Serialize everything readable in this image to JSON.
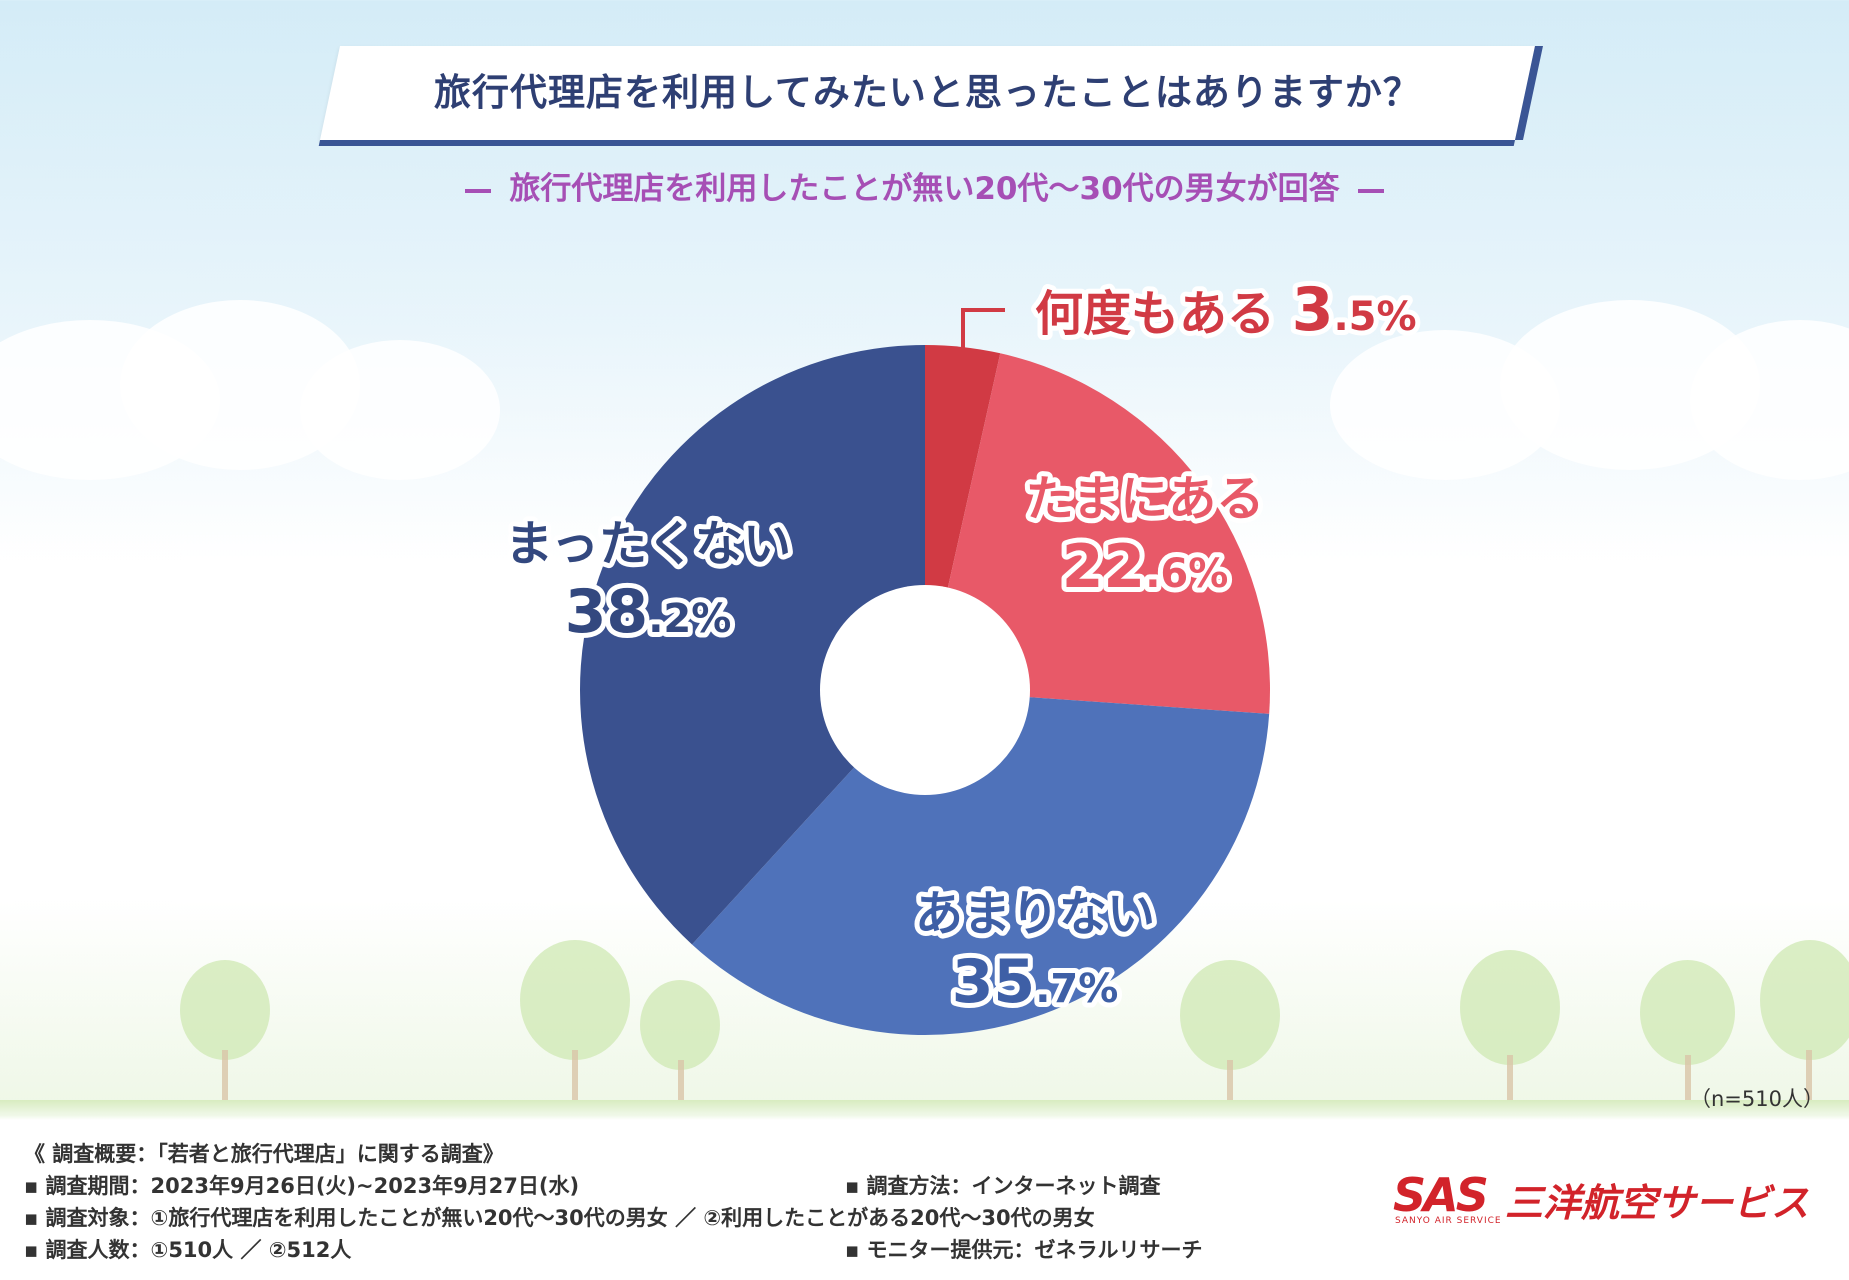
{
  "title": "旅行代理店を利用してみたいと思ったことはありますか？",
  "subtitle": "旅行代理店を利用したことが無い20代〜30代の男女が回答",
  "sample_note": "（n=510人）",
  "chart_data": {
    "type": "donut",
    "title": "旅行代理店を利用してみたいと思ったことはありますか？",
    "subtitle": "旅行代理店を利用したことが無い20代〜30代の男女が回答",
    "legend": "none",
    "slices": [
      {
        "label": "何度もある",
        "value": 3.5,
        "pct_int": "3",
        "pct_dec": ".5%",
        "color": "#d13a44",
        "text_color": "#d13a44"
      },
      {
        "label": "たまにある",
        "value": 22.6,
        "pct_int": "22",
        "pct_dec": ".6%",
        "color": "#e85968",
        "text_color": "#e85968"
      },
      {
        "label": "あまりない",
        "value": 35.7,
        "pct_int": "35",
        "pct_dec": ".7%",
        "color": "#4f72ba",
        "text_color": "#3e5fa6"
      },
      {
        "label": "まったくない",
        "value": 38.2,
        "pct_int": "38",
        "pct_dec": ".2%",
        "color": "#3a518f",
        "text_color": "#33487f"
      }
    ]
  },
  "footer": {
    "overview": "《 調査概要：「若者と旅行代理店」に関する調査》",
    "period": "▪ 調査期間：2023年9月26日(火)~2023年9月27日(水)",
    "method": "▪ 調査方法：インターネット調査",
    "target": "▪ 調査対象：①旅行代理店を利用したことが無い20代〜30代の男女 ／ ②利用したことがある20代〜30代の男女",
    "count": "▪ 調査人数：①510人 ／ ②512人",
    "provider": "▪ モニター提供元：ゼネラルリサーチ"
  },
  "logo": {
    "mark": "SAS",
    "name": "三洋航空サービス",
    "sub": "SANYO AIR SERVICE"
  }
}
